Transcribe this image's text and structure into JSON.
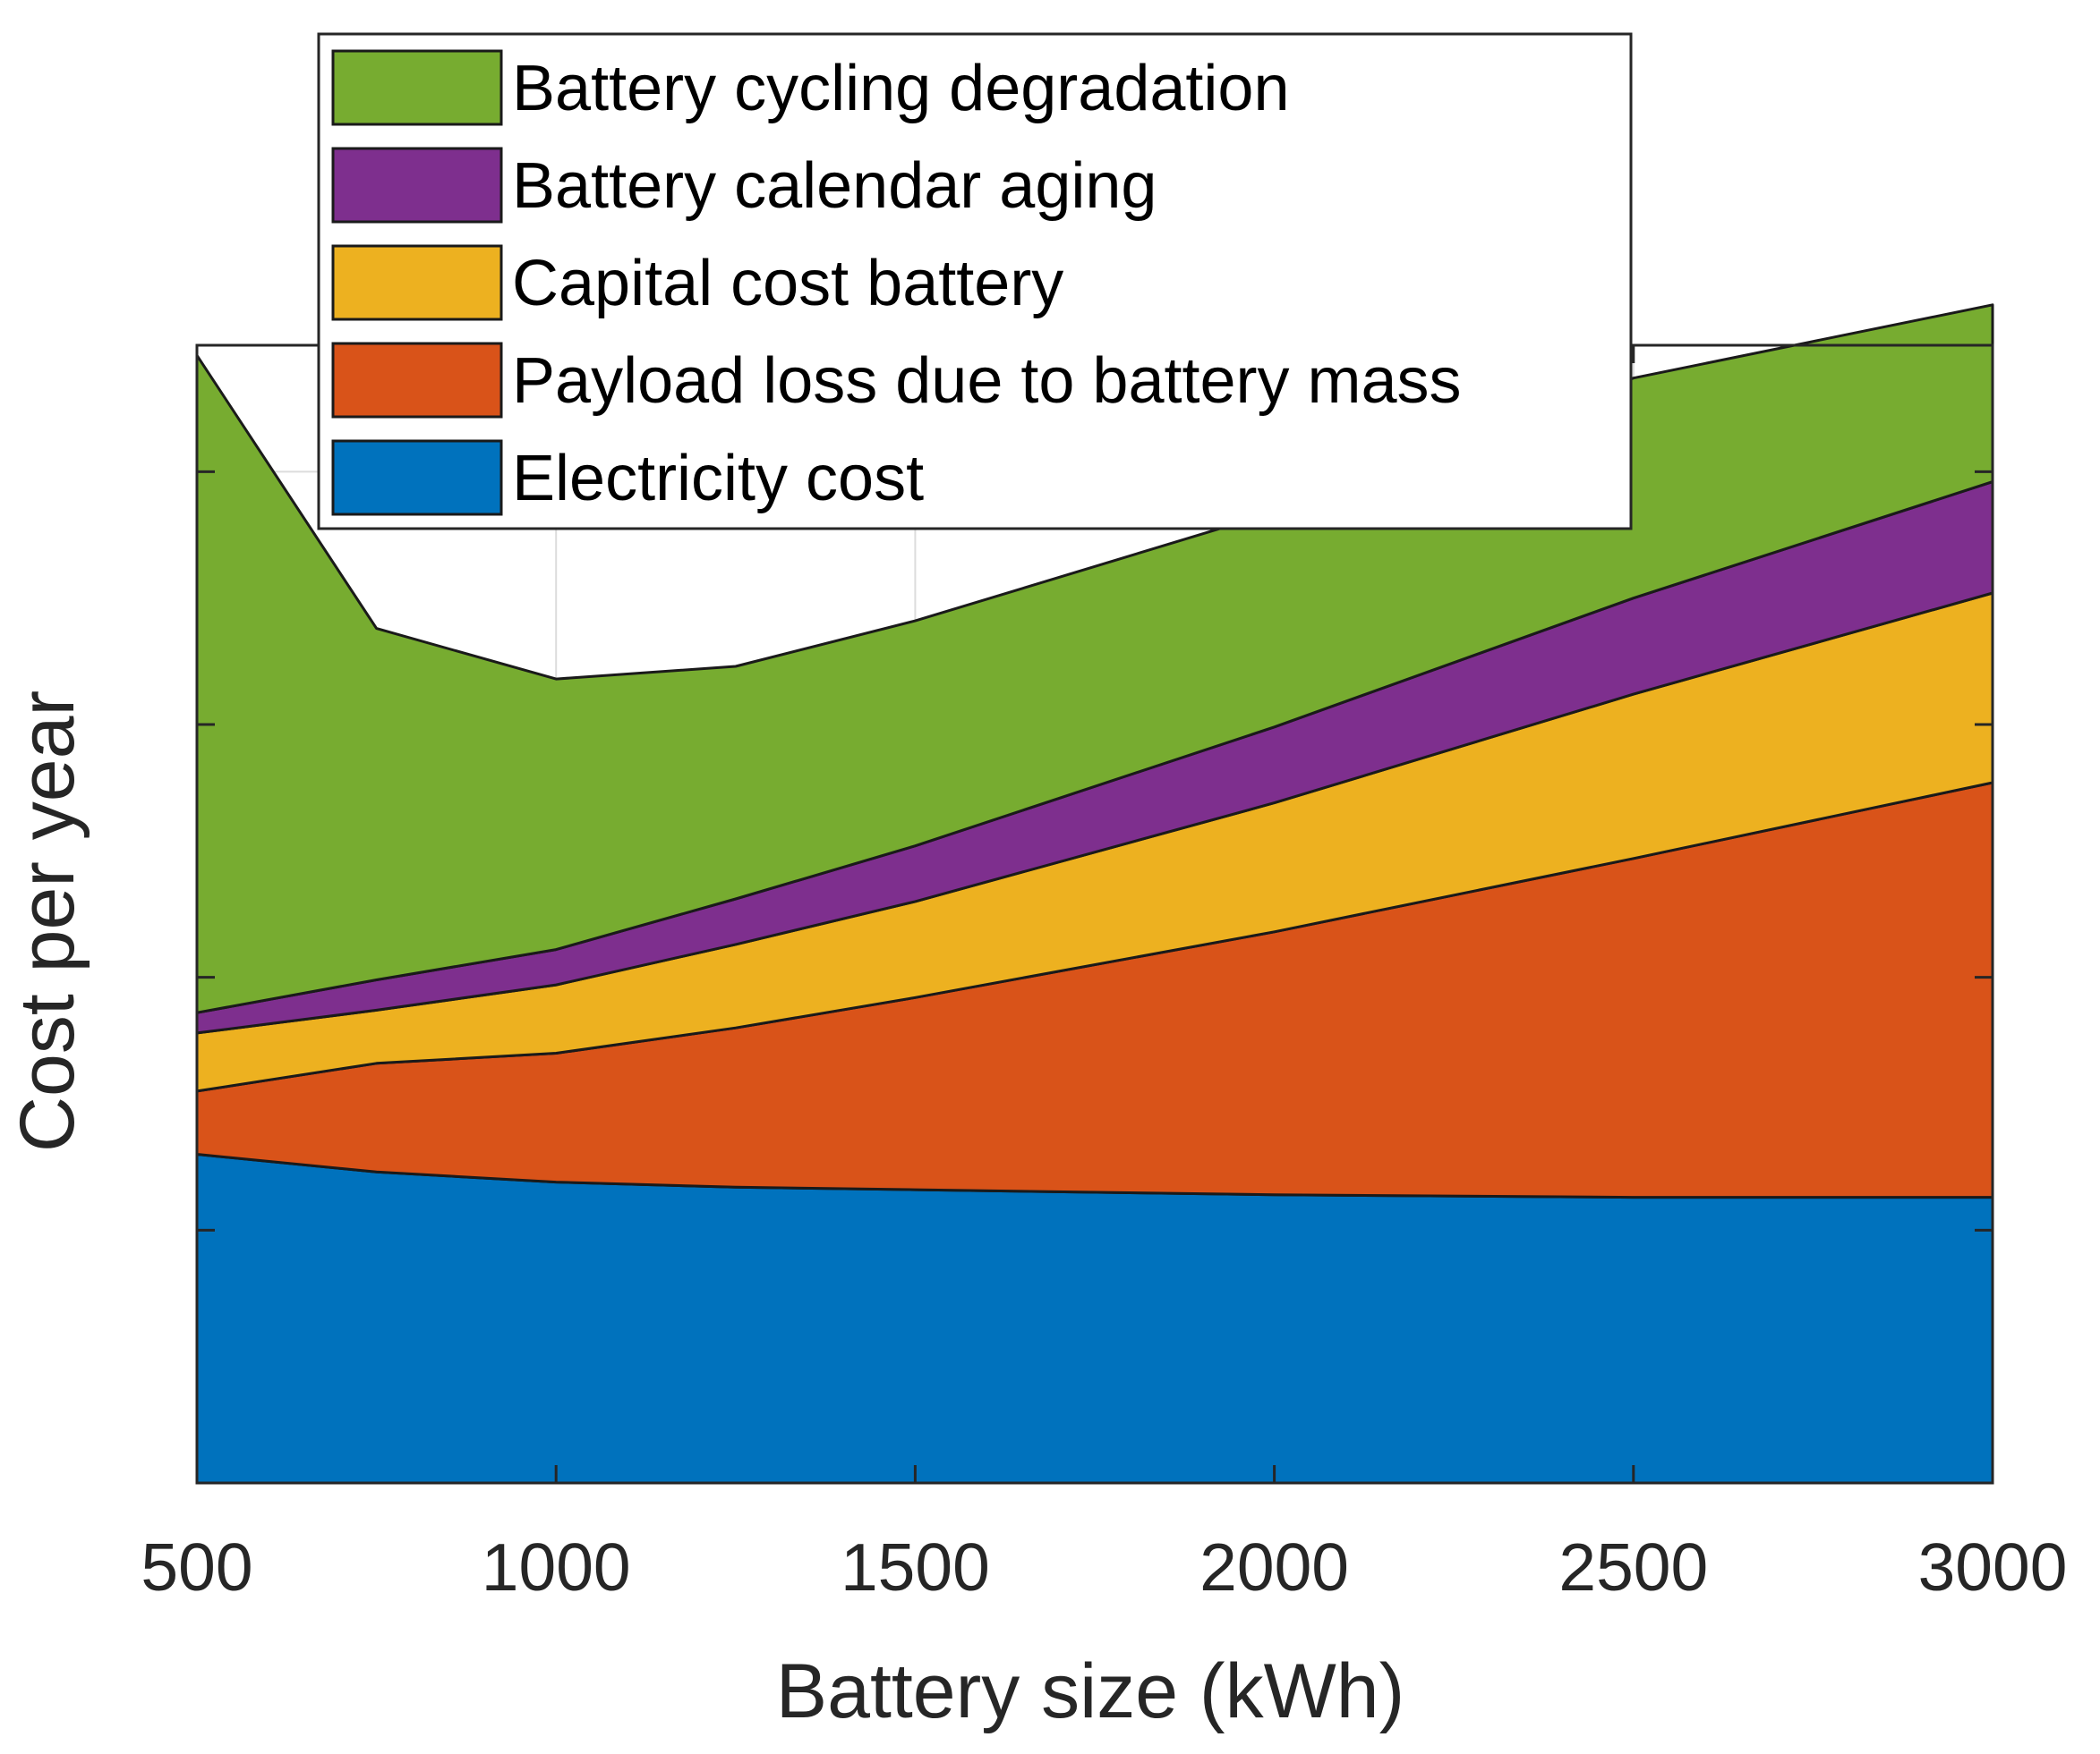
{
  "chart_data": {
    "type": "area",
    "stacked": true,
    "title": "",
    "xlabel": "Battery size (kWh)",
    "ylabel": "Cost per year",
    "x": [
      500,
      750,
      1000,
      1250,
      1500,
      2000,
      2500,
      3000
    ],
    "xlim": [
      500,
      3000
    ],
    "xticks": [
      500,
      1000,
      1500,
      2000,
      2500,
      3000
    ],
    "xtick_labels": [
      "500",
      "1000",
      "1500",
      "2000",
      "2500",
      "3000"
    ],
    "ylim": [
      0,
      4.5
    ],
    "yticks": [
      1,
      2,
      3,
      4
    ],
    "ytick_labels_visible": false,
    "grid": true,
    "legend_position": "top-center, extending above the axes",
    "legend_order": [
      "Battery cycling degradation",
      "Battery calendar aging",
      "Capital cost battery",
      "Payload loss due to battery mass",
      "Electricity cost"
    ],
    "series": [
      {
        "name": "Electricity cost",
        "color": "#0072BD",
        "values": [
          1.3,
          1.23,
          1.19,
          1.17,
          1.16,
          1.14,
          1.13,
          1.13
        ]
      },
      {
        "name": "Payload loss due to battery mass",
        "color": "#D95319",
        "values": [
          0.25,
          0.43,
          0.51,
          0.63,
          0.76,
          1.04,
          1.34,
          1.64
        ]
      },
      {
        "name": "Capital cost battery",
        "color": "#EDB120",
        "values": [
          0.23,
          0.21,
          0.27,
          0.33,
          0.38,
          0.51,
          0.65,
          0.75
        ]
      },
      {
        "name": "Battery calendar aging",
        "color": "#7E2F8E",
        "values": [
          0.08,
          0.12,
          0.14,
          0.18,
          0.22,
          0.3,
          0.38,
          0.44
        ]
      },
      {
        "name": "Battery cycling degradation",
        "color": "#77AC30",
        "values": [
          2.6,
          1.39,
          1.07,
          0.92,
          0.89,
          0.85,
          0.87,
          0.7
        ]
      }
    ]
  }
}
